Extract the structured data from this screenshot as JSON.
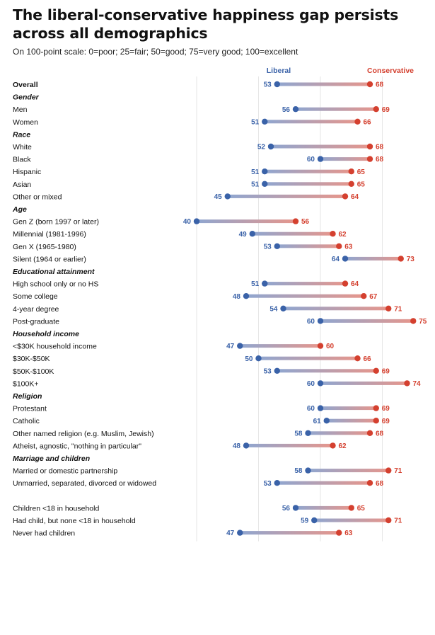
{
  "header": {
    "title": "The liberal-conservative happiness gap persists across all demographics",
    "subtitle": "On 100-point scale: 0=poor; 25=fair; 50=good; 75=very good; 100=excellent"
  },
  "colors": {
    "liberal": "#3a62a8",
    "conservative": "#d4402f",
    "grid": "#e6e6e6"
  },
  "chart_data": {
    "type": "dumbbell",
    "title": "The liberal-conservative happiness gap persists across all demographics",
    "subtitle": "On 100-point scale: 0=poor; 25=fair; 50=good; 75=very good; 100=excellent",
    "legend": {
      "liberal": "Liberal",
      "conservative": "Conservative",
      "placement": "top"
    },
    "grid": true,
    "x_range": [
      32,
      77
    ],
    "series": [
      {
        "name": "Liberal",
        "color": "#3a62a8"
      },
      {
        "name": "Conservative",
        "color": "#d4402f"
      }
    ],
    "rows": [
      {
        "kind": "row",
        "label": "Overall",
        "liberal": 53,
        "conservative": 68,
        "emphasis": true
      },
      {
        "kind": "group",
        "label": "Gender"
      },
      {
        "kind": "row",
        "label": "Men",
        "liberal": 56,
        "conservative": 69
      },
      {
        "kind": "row",
        "label": "Women",
        "liberal": 51,
        "conservative": 66
      },
      {
        "kind": "group",
        "label": "Race"
      },
      {
        "kind": "row",
        "label": "White",
        "liberal": 52,
        "conservative": 68
      },
      {
        "kind": "row",
        "label": "Black",
        "liberal": 60,
        "conservative": 68
      },
      {
        "kind": "row",
        "label": "Hispanic",
        "liberal": 51,
        "conservative": 65
      },
      {
        "kind": "row",
        "label": "Asian",
        "liberal": 51,
        "conservative": 65
      },
      {
        "kind": "row",
        "label": "Other or mixed",
        "liberal": 45,
        "conservative": 64
      },
      {
        "kind": "group",
        "label": "Age"
      },
      {
        "kind": "row",
        "label": "Gen Z (born 1997 or later)",
        "liberal": 40,
        "conservative": 56
      },
      {
        "kind": "row",
        "label": "Millennial (1981-1996)",
        "liberal": 49,
        "conservative": 62
      },
      {
        "kind": "row",
        "label": "Gen X (1965-1980)",
        "liberal": 53,
        "conservative": 63
      },
      {
        "kind": "row",
        "label": "Silent (1964 or earlier)",
        "liberal": 64,
        "conservative": 73
      },
      {
        "kind": "group",
        "label": "Educational attainment"
      },
      {
        "kind": "row",
        "label": "High school only or no HS",
        "liberal": 51,
        "conservative": 64
      },
      {
        "kind": "row",
        "label": "Some college",
        "liberal": 48,
        "conservative": 67
      },
      {
        "kind": "row",
        "label": "4-year degree",
        "liberal": 54,
        "conservative": 71
      },
      {
        "kind": "row",
        "label": "Post-graduate",
        "liberal": 60,
        "conservative": 75
      },
      {
        "kind": "group",
        "label": "Household income"
      },
      {
        "kind": "row",
        "label": "<$30K household income",
        "liberal": 47,
        "conservative": 60
      },
      {
        "kind": "row",
        "label": "$30K-$50K",
        "liberal": 50,
        "conservative": 66
      },
      {
        "kind": "row",
        "label": "$50K-$100K",
        "liberal": 53,
        "conservative": 69
      },
      {
        "kind": "row",
        "label": "$100K+",
        "liberal": 60,
        "conservative": 74
      },
      {
        "kind": "group",
        "label": "Religion"
      },
      {
        "kind": "row",
        "label": "Protestant",
        "liberal": 60,
        "conservative": 69
      },
      {
        "kind": "row",
        "label": "Catholic",
        "liberal": 61,
        "conservative": 69
      },
      {
        "kind": "row",
        "label": "Other named religion (e.g. Muslim, Jewish)",
        "liberal": 58,
        "conservative": 68
      },
      {
        "kind": "row",
        "label": "Atheist, agnostic, \"nothing in particular\"",
        "liberal": 48,
        "conservative": 62
      },
      {
        "kind": "group",
        "label": "Marriage and children"
      },
      {
        "kind": "row",
        "label": "Married or domestic partnership",
        "liberal": 58,
        "conservative": 71
      },
      {
        "kind": "row",
        "label": "Unmarried, separated, divorced or widowed",
        "liberal": 53,
        "conservative": 68
      },
      {
        "kind": "spacer"
      },
      {
        "kind": "row",
        "label": "Children <18 in household",
        "liberal": 56,
        "conservative": 65
      },
      {
        "kind": "row",
        "label": "Had child, but none <18 in household",
        "liberal": 59,
        "conservative": 71
      },
      {
        "kind": "row",
        "label": "Never had children",
        "liberal": 47,
        "conservative": 63
      }
    ]
  }
}
